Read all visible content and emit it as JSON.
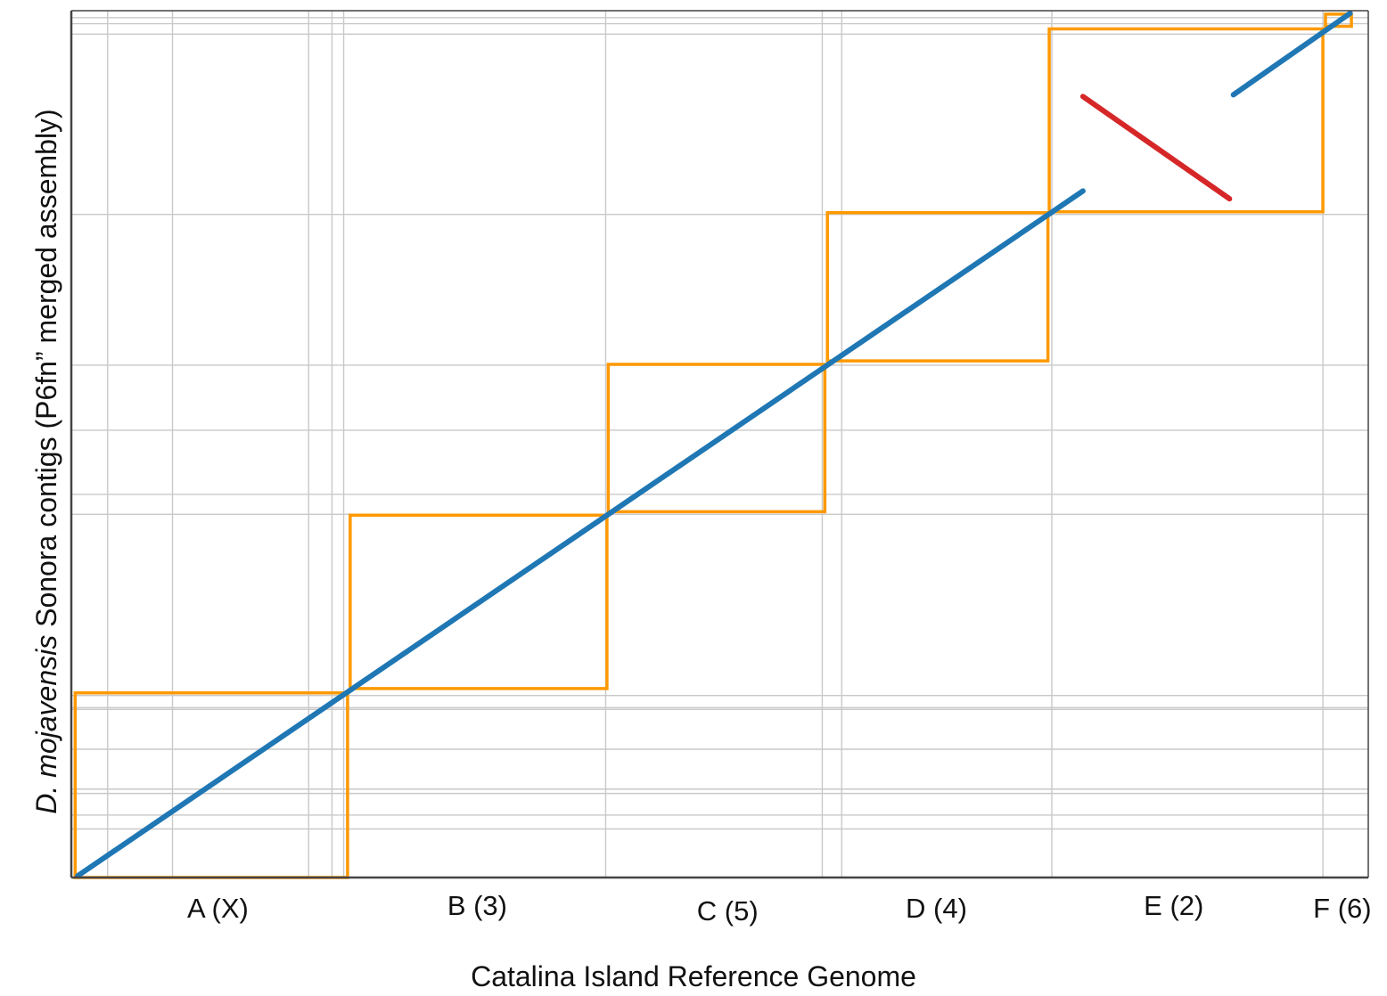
{
  "chart_data": {
    "type": "scatter",
    "title": "",
    "xlabel": "Catalina Island Reference Genome",
    "ylabel": {
      "species": "D. mojavensis",
      "rest": " Sonora contigs (P6fn” merged assembly)"
    },
    "xlim": [
      0,
      100
    ],
    "ylim": [
      0,
      100
    ],
    "grid": true,
    "categories": [
      "A (X)",
      "B (3)",
      "C (5)",
      "D (4)",
      "E (2)",
      "F (6)"
    ],
    "category_centers": [
      11.3,
      31.3,
      50.6,
      66.7,
      85.0,
      98.0
    ],
    "x_gridlines": [
      2.8,
      7.8,
      18.3,
      20.1,
      21.0,
      41.2,
      57.9,
      59.4,
      75.6,
      96.5
    ],
    "y_gridlines": [
      5.6,
      7.2,
      9.7,
      10.2,
      14.8,
      19.4,
      19.6,
      21.0,
      41.9,
      44.2,
      51.6,
      59.1,
      76.5,
      97.3,
      98.5,
      99.2
    ],
    "scaffold_boxes": [
      {
        "label": "A (X)",
        "x": [
          0.3,
          21.3
        ],
        "y": [
          0,
          21.3
        ]
      },
      {
        "label": "B (3)",
        "x": [
          21.5,
          41.3
        ],
        "y": [
          21.8,
          41.8
        ]
      },
      {
        "label": "C (5)",
        "x": [
          41.4,
          58.1
        ],
        "y": [
          42.2,
          59.2
        ]
      },
      {
        "label": "D (4)",
        "x": [
          58.3,
          75.3
        ],
        "y": [
          59.6,
          76.7
        ]
      },
      {
        "label": "E (2)",
        "x": [
          75.4,
          96.5
        ],
        "y": [
          76.8,
          97.9
        ]
      },
      {
        "label": "F (6)",
        "x": [
          96.7,
          98.7
        ],
        "y": [
          98.2,
          99.6
        ]
      }
    ],
    "series": [
      {
        "orientation": "forward",
        "color": "#1f77b4",
        "segments": [
          [
            [
              0.5,
              0.2
            ],
            [
              78.0,
              79.2
            ]
          ],
          [
            [
              89.6,
              90.3
            ],
            [
              98.6,
              99.7
            ]
          ]
        ]
      },
      {
        "orientation": "reverse",
        "color": "#d62728",
        "segments": [
          [
            [
              78.0,
              90.1
            ],
            [
              89.3,
              78.3
            ]
          ]
        ]
      }
    ],
    "colors": {
      "box": "#ff9900",
      "grid": "#c9c9c9",
      "axis": "#444444"
    }
  }
}
